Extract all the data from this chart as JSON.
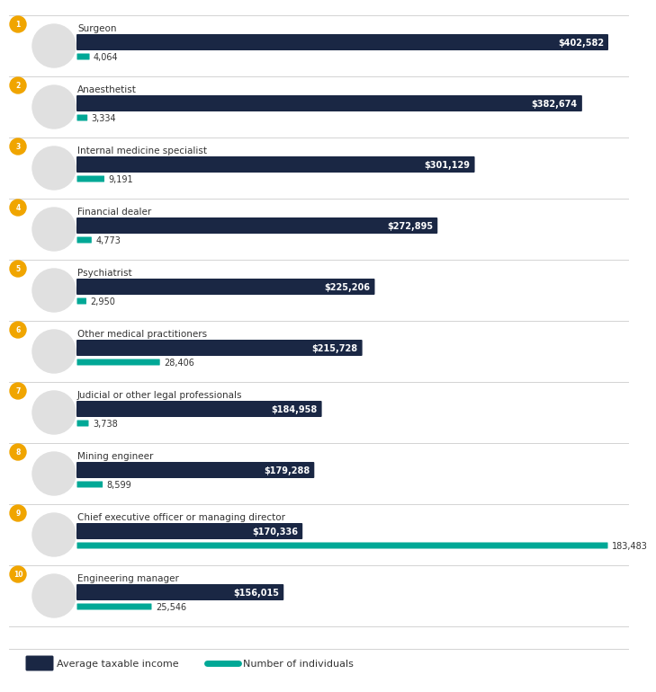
{
  "occupations": [
    "Surgeon",
    "Anaesthetist",
    "Internal medicine specialist",
    "Financial dealer",
    "Psychiatrist",
    "Other medical practitioners",
    "Judicial or other legal professionals",
    "Mining engineer",
    "Chief executive officer or managing director",
    "Engineering manager"
  ],
  "avg_income": [
    402582,
    382674,
    301129,
    272895,
    225206,
    215728,
    184958,
    179288,
    170336,
    156015
  ],
  "num_individuals": [
    4064,
    3334,
    9191,
    4773,
    2950,
    28406,
    3738,
    8599,
    183483,
    25546
  ],
  "income_color": "#1a2744",
  "individuals_color": "#00a896",
  "background_color": "#ffffff",
  "max_income": 402582,
  "max_individuals": 183483,
  "income_label": "Average taxable income",
  "individuals_label": "Number of individuals",
  "rank_bg_color": "#f0a500",
  "font_color": "#333333",
  "label_fontsize": 7.5,
  "value_fontsize": 7.0,
  "sep_color": "#cccccc"
}
